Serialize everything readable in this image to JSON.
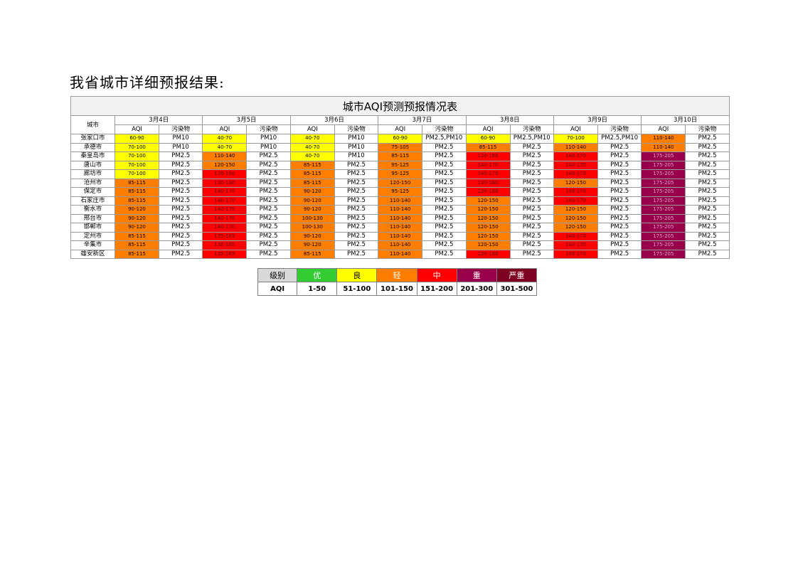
{
  "heading": "我省城市详细预报结果:",
  "table": {
    "title": "城市AQI预测预报情况表",
    "city_header": "城市",
    "aqi_label": "AQI",
    "pollutant_label": "污染物",
    "dates": [
      "3月4日",
      "3月5日",
      "3月6日",
      "3月7日",
      "3月8日",
      "3月9日",
      "3月10日"
    ],
    "rows": [
      {
        "city": "张家口市",
        "days": [
          [
            "60-90",
            "PM10"
          ],
          [
            "40-70",
            "PM10"
          ],
          [
            "40-70",
            "PM10"
          ],
          [
            "60-90",
            "PM2.5,PM10"
          ],
          [
            "60-90",
            "PM2.5,PM10"
          ],
          [
            "70-100",
            "PM2.5,PM10"
          ],
          [
            "110-140",
            "PM2.5"
          ]
        ]
      },
      {
        "city": "承德市",
        "days": [
          [
            "70-100",
            "PM10"
          ],
          [
            "40-70",
            "PM10"
          ],
          [
            "40-70",
            "PM10"
          ],
          [
            "75-105",
            "PM2.5"
          ],
          [
            "85-115",
            "PM2.5"
          ],
          [
            "110-140",
            "PM2.5"
          ],
          [
            "110-140",
            "PM2.5"
          ]
        ]
      },
      {
        "city": "秦皇岛市",
        "days": [
          [
            "70-100",
            "PM2.5"
          ],
          [
            "110-140",
            "PM2.5"
          ],
          [
            "40-70",
            "PM10"
          ],
          [
            "85-115",
            "PM2.5"
          ],
          [
            "130-160",
            "PM2.5"
          ],
          [
            "140-170",
            "PM2.5"
          ],
          [
            "175-205",
            "PM2.5"
          ]
        ]
      },
      {
        "city": "唐山市",
        "days": [
          [
            "70-100",
            "PM2.5"
          ],
          [
            "120-150",
            "PM2.5"
          ],
          [
            "85-115",
            "PM2.5"
          ],
          [
            "95-125",
            "PM2.5"
          ],
          [
            "140-170",
            "PM2.5"
          ],
          [
            "140-170",
            "PM2.5"
          ],
          [
            "175-205",
            "PM2.5"
          ]
        ]
      },
      {
        "city": "廊坊市",
        "days": [
          [
            "70-100",
            "PM2.5"
          ],
          [
            "130-160",
            "PM2.5"
          ],
          [
            "85-115",
            "PM2.5"
          ],
          [
            "95-125",
            "PM2.5"
          ],
          [
            "140-170",
            "PM2.5"
          ],
          [
            "140-170",
            "PM2.5"
          ],
          [
            "175-205",
            "PM2.5"
          ]
        ]
      },
      {
        "city": "沧州市",
        "days": [
          [
            "85-115",
            "PM2.5"
          ],
          [
            "130-160",
            "PM2.5"
          ],
          [
            "85-115",
            "PM2.5"
          ],
          [
            "120-150",
            "PM2.5"
          ],
          [
            "130-160",
            "PM2.5"
          ],
          [
            "120-150",
            "PM2.5"
          ],
          [
            "175-205",
            "PM2.5"
          ]
        ]
      },
      {
        "city": "保定市",
        "days": [
          [
            "85-115",
            "PM2.5"
          ],
          [
            "140-170",
            "PM2.5"
          ],
          [
            "90-120",
            "PM2.5"
          ],
          [
            "95-125",
            "PM2.5"
          ],
          [
            "130-160",
            "PM2.5"
          ],
          [
            "140-170",
            "PM2.5"
          ],
          [
            "175-205",
            "PM2.5"
          ]
        ]
      },
      {
        "city": "石家庄市",
        "days": [
          [
            "85-115",
            "PM2.5"
          ],
          [
            "140-170",
            "PM2.5"
          ],
          [
            "90-120",
            "PM2.5"
          ],
          [
            "110-140",
            "PM2.5"
          ],
          [
            "120-150",
            "PM2.5"
          ],
          [
            "140-170",
            "PM2.5"
          ],
          [
            "175-205",
            "PM2.5"
          ]
        ]
      },
      {
        "city": "衡水市",
        "days": [
          [
            "90-120",
            "PM2.5"
          ],
          [
            "140-170",
            "PM2.5"
          ],
          [
            "90-120",
            "PM2.5"
          ],
          [
            "110-140",
            "PM2.5"
          ],
          [
            "120-150",
            "PM2.5"
          ],
          [
            "120-150",
            "PM2.5"
          ],
          [
            "175-205",
            "PM2.5"
          ]
        ]
      },
      {
        "city": "邢台市",
        "days": [
          [
            "90-120",
            "PM2.5"
          ],
          [
            "140-170",
            "PM2.5"
          ],
          [
            "100-130",
            "PM2.5"
          ],
          [
            "110-140",
            "PM2.5"
          ],
          [
            "120-150",
            "PM2.5"
          ],
          [
            "120-150",
            "PM2.5"
          ],
          [
            "175-205",
            "PM2.5"
          ]
        ]
      },
      {
        "city": "邯郸市",
        "days": [
          [
            "90-120",
            "PM2.5"
          ],
          [
            "140-170",
            "PM2.5"
          ],
          [
            "100-130",
            "PM2.5"
          ],
          [
            "110-140",
            "PM2.5"
          ],
          [
            "120-150",
            "PM2.5"
          ],
          [
            "120-150",
            "PM2.5"
          ],
          [
            "175-205",
            "PM2.5"
          ]
        ]
      },
      {
        "city": "定州市",
        "days": [
          [
            "85-115",
            "PM2.5"
          ],
          [
            "135-165",
            "PM2.5"
          ],
          [
            "90-120",
            "PM2.5"
          ],
          [
            "110-140",
            "PM2.5"
          ],
          [
            "120-150",
            "PM2.5"
          ],
          [
            "140-170",
            "PM2.5"
          ],
          [
            "175-205",
            "PM2.5"
          ]
        ]
      },
      {
        "city": "辛集市",
        "days": [
          [
            "85-115",
            "PM2.5"
          ],
          [
            "135-165",
            "PM2.5"
          ],
          [
            "90-120",
            "PM2.5"
          ],
          [
            "110-140",
            "PM2.5"
          ],
          [
            "120-150",
            "PM2.5"
          ],
          [
            "140-170",
            "PM2.5"
          ],
          [
            "175-205",
            "PM2.5"
          ]
        ]
      },
      {
        "city": "雄安新区",
        "days": [
          [
            "85-115",
            "PM2.5"
          ],
          [
            "135-165",
            "PM2.5"
          ],
          [
            "85-115",
            "PM2.5"
          ],
          [
            "110-140",
            "PM2.5"
          ],
          [
            "130-160",
            "PM2.5"
          ],
          [
            "140-170",
            "PM2.5"
          ],
          [
            "175-205",
            "PM2.5"
          ]
        ]
      }
    ]
  },
  "legend": {
    "level_label": "级别",
    "aqi_label": "AQI",
    "levels": [
      {
        "name": "优",
        "range": "1-50",
        "color": "#33cc33",
        "text_color": "#ffffff"
      },
      {
        "name": "良",
        "range": "51-100",
        "color": "#ffff00",
        "text_color": "#000000"
      },
      {
        "name": "轻",
        "range": "101-150",
        "color": "#ff7e00",
        "text_color": "#ffffff"
      },
      {
        "name": "中",
        "range": "151-200",
        "color": "#ff0000",
        "text_color": "#ffffff"
      },
      {
        "name": "重",
        "range": "201-300",
        "color": "#99004c",
        "text_color": "#ffffff"
      },
      {
        "name": "严重",
        "range": "301-500",
        "color": "#7e0023",
        "text_color": "#ffffff"
      }
    ]
  }
}
